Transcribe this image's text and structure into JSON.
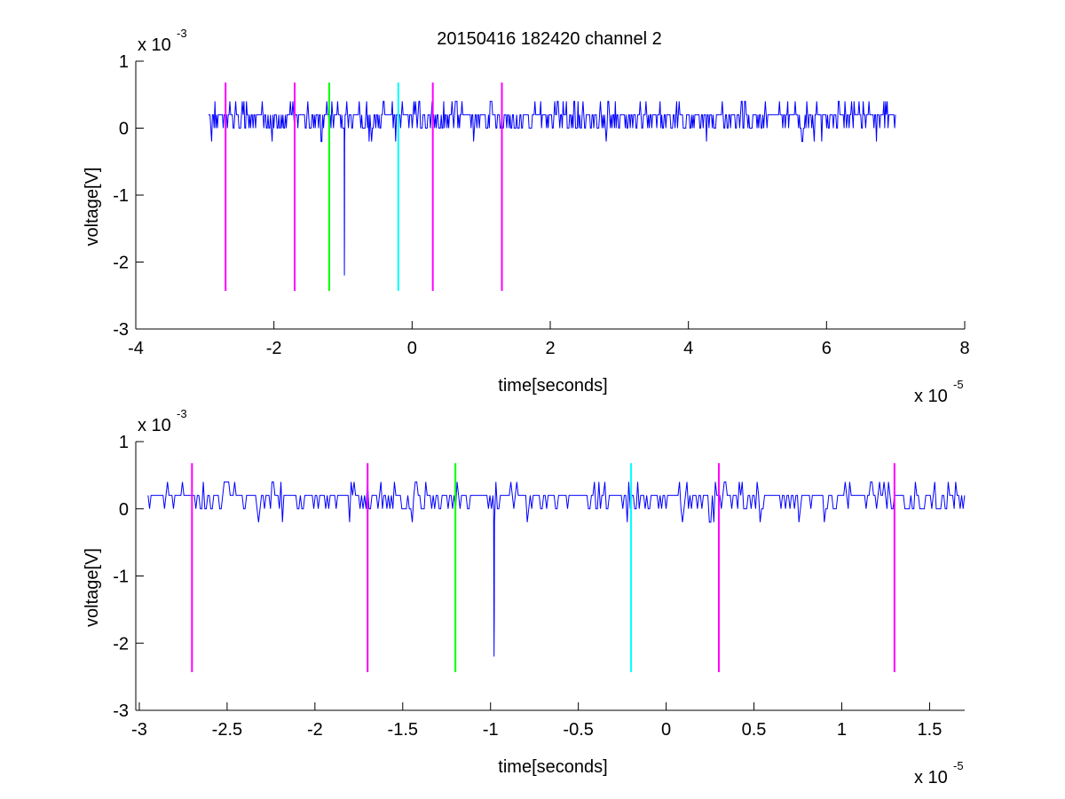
{
  "figure": {
    "title": "20150416 182420 channel 2",
    "colors": {
      "signal": "#0000ff",
      "magenta": "#ff00ff",
      "green": "#00ff00",
      "cyan": "#00ffff",
      "axes": "#000000",
      "background": "#ffffff"
    }
  },
  "chart_data": [
    {
      "type": "line",
      "title": "20150416 182420 channel 2",
      "xlabel": "time[seconds]",
      "ylabel": "voltage[V]",
      "x_multiplier_label": "x 10",
      "x_multiplier_exp": "-5",
      "y_multiplier_label": "x 10",
      "y_multiplier_exp": "-3",
      "xlim": [
        -4,
        8
      ],
      "ylim": [
        -3,
        1
      ],
      "x_ticks": [
        -4,
        -2,
        0,
        2,
        4,
        6,
        8
      ],
      "x_tick_labels": [
        "-4",
        "-2",
        "0",
        "2",
        "4",
        "6",
        "8"
      ],
      "y_ticks": [
        -3,
        -2,
        -1,
        0,
        1
      ],
      "y_tick_labels": [
        "-3",
        "-2",
        "-1",
        "0",
        "1"
      ],
      "grid": false,
      "legend": "none",
      "signal": {
        "x_start": -2.95,
        "x_end": 7.0,
        "baseline": 0.02,
        "spike_x": -0.98,
        "spike_min": -2.2
      },
      "markers": [
        {
          "x": -2.7,
          "color": "magenta",
          "y_top": 0.68,
          "y_bottom": -2.43
        },
        {
          "x": -1.7,
          "color": "magenta",
          "y_top": 0.68,
          "y_bottom": -2.43
        },
        {
          "x": -1.2,
          "color": "green",
          "y_top": 0.68,
          "y_bottom": -2.43
        },
        {
          "x": -0.2,
          "color": "cyan",
          "y_top": 0.68,
          "y_bottom": -2.43
        },
        {
          "x": 0.3,
          "color": "magenta",
          "y_top": 0.68,
          "y_bottom": -2.43
        },
        {
          "x": 1.3,
          "color": "magenta",
          "y_top": 0.68,
          "y_bottom": -2.43
        }
      ]
    },
    {
      "type": "line",
      "title": "",
      "xlabel": "time[seconds]",
      "ylabel": "voltage[V]",
      "x_multiplier_label": "x 10",
      "x_multiplier_exp": "-5",
      "y_multiplier_label": "x 10",
      "y_multiplier_exp": "-3",
      "xlim": [
        -3.02,
        1.7
      ],
      "ylim": [
        -3,
        1
      ],
      "x_ticks": [
        -3,
        -2.5,
        -2,
        -1.5,
        -1,
        -0.5,
        0,
        0.5,
        1,
        1.5
      ],
      "x_tick_labels": [
        "-3",
        "-2.5",
        "-2",
        "-1.5",
        "-1",
        "-0.5",
        "0",
        "0.5",
        "1",
        "1.5"
      ],
      "y_ticks": [
        -3,
        -2,
        -1,
        0,
        1
      ],
      "y_tick_labels": [
        "-3",
        "-2",
        "-1",
        "0",
        "1"
      ],
      "grid": false,
      "legend": "none",
      "signal": {
        "x_start": -2.95,
        "x_end": 1.7,
        "baseline": 0.02,
        "spike_x": -0.98,
        "spike_min": -2.2
      },
      "markers": [
        {
          "x": -2.7,
          "color": "magenta",
          "y_top": 0.68,
          "y_bottom": -2.43
        },
        {
          "x": -1.7,
          "color": "magenta",
          "y_top": 0.68,
          "y_bottom": -2.43
        },
        {
          "x": -1.2,
          "color": "green",
          "y_top": 0.68,
          "y_bottom": -2.43
        },
        {
          "x": -0.2,
          "color": "cyan",
          "y_top": 0.68,
          "y_bottom": -2.43
        },
        {
          "x": 0.3,
          "color": "magenta",
          "y_top": 0.68,
          "y_bottom": -2.43
        },
        {
          "x": 1.3,
          "color": "magenta",
          "y_top": 0.68,
          "y_bottom": -2.43
        }
      ]
    }
  ]
}
